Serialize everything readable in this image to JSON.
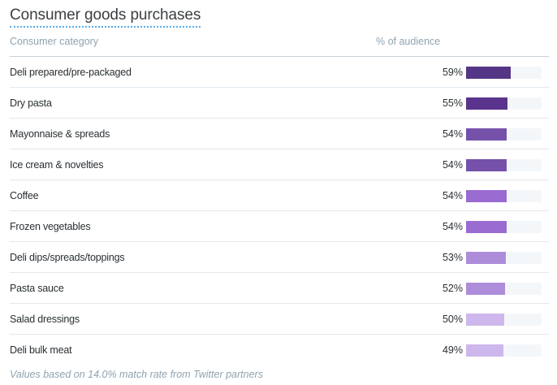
{
  "title": "Consumer goods purchases",
  "headers": {
    "category": "Consumer category",
    "percent": "% of audience"
  },
  "rows": [
    {
      "label": "Deli prepared/pre-packaged",
      "value": "59%",
      "pct": 59,
      "color": "#553586"
    },
    {
      "label": "Dry pasta",
      "value": "55%",
      "pct": 55,
      "color": "#5a348c"
    },
    {
      "label": "Mayonnaise & spreads",
      "value": "54%",
      "pct": 54,
      "color": "#7551aa"
    },
    {
      "label": "Ice cream & novelties",
      "value": "54%",
      "pct": 54,
      "color": "#7551aa"
    },
    {
      "label": "Coffee",
      "value": "54%",
      "pct": 54,
      "color": "#9a6bd0"
    },
    {
      "label": "Frozen vegetables",
      "value": "54%",
      "pct": 54,
      "color": "#9a6bd0"
    },
    {
      "label": "Deli dips/spreads/toppings",
      "value": "53%",
      "pct": 53,
      "color": "#ad8dda"
    },
    {
      "label": "Pasta sauce",
      "value": "52%",
      "pct": 52,
      "color": "#ad8dda"
    },
    {
      "label": "Salad dressings",
      "value": "50%",
      "pct": 50,
      "color": "#cdb7ec"
    },
    {
      "label": "Deli bulk meat",
      "value": "49%",
      "pct": 49,
      "color": "#cdb7ec"
    }
  ],
  "footnote": "Values based on 14.0% match rate from Twitter partners"
}
